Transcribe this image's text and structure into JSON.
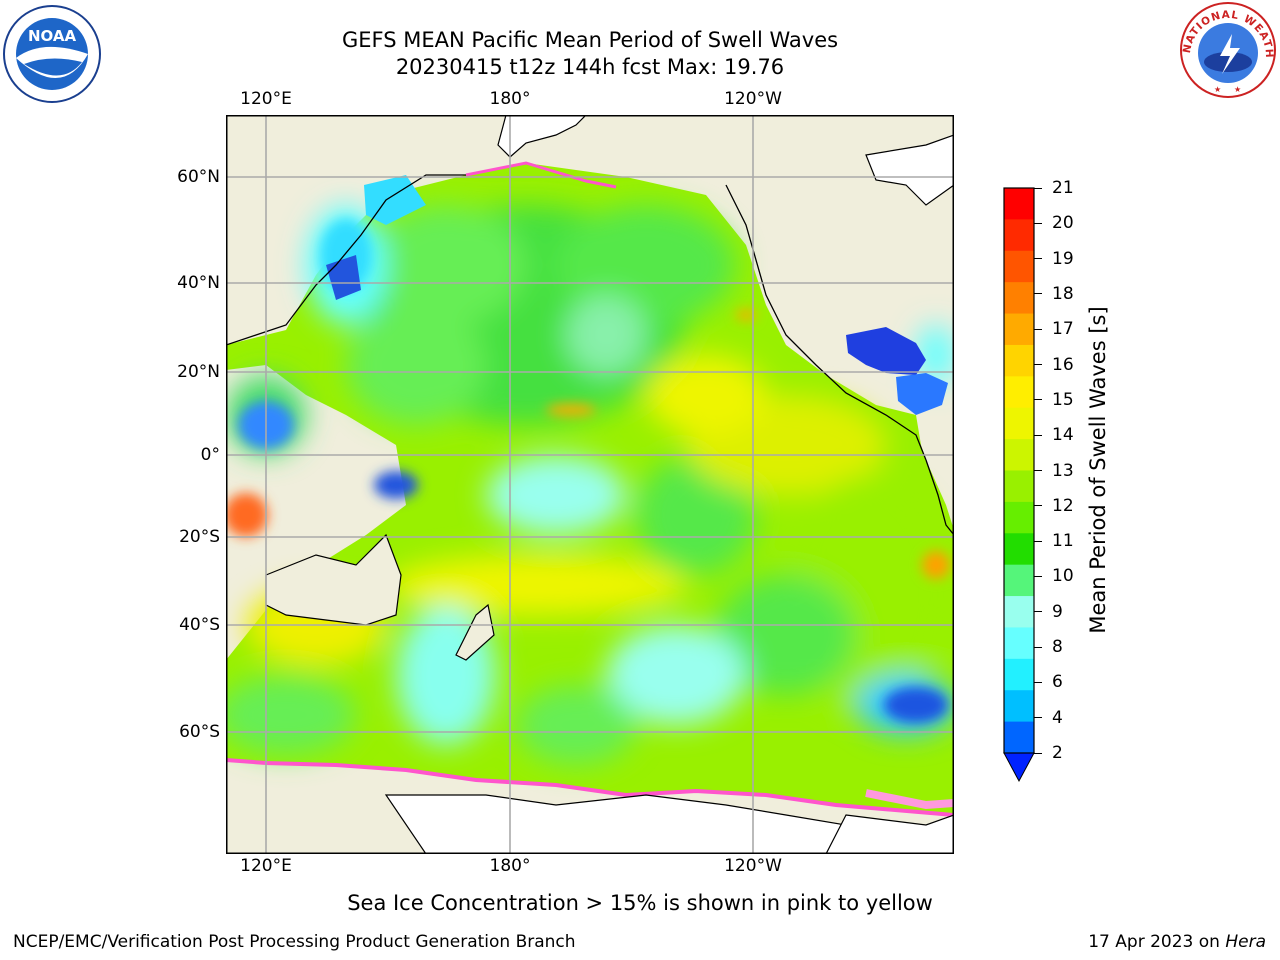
{
  "title": {
    "line1": "GEFS MEAN Pacific Mean Period of Swell Waves",
    "line2": "20230415 t12z 144h fcst   Max: 19.76"
  },
  "logos": {
    "noaa": {
      "icon": "noaa-logo",
      "text": "NOAA"
    },
    "nws": {
      "icon": "nws-logo",
      "text": "NATIONAL WEATHER SERVICE"
    }
  },
  "map": {
    "lon_labels": [
      "120°E",
      "180°",
      "120°W"
    ],
    "lat_labels": [
      "60°N",
      "40°N",
      "20°N",
      "0°",
      "20°S",
      "40°S",
      "60°S"
    ],
    "land_color": "#f0eedc",
    "ice_color": "#ff55cc"
  },
  "colorbar": {
    "title": "Mean Period of Swell Waves [s]",
    "ticks": [
      "21",
      "20",
      "19",
      "18",
      "17",
      "16",
      "15",
      "14",
      "13",
      "12",
      "11",
      "10",
      "9",
      "8",
      "6",
      "4",
      "2"
    ],
    "colors": [
      "#ff0000",
      "#ff2a00",
      "#ff5500",
      "#ff8000",
      "#ffaa00",
      "#ffd400",
      "#ffee00",
      "#eef500",
      "#ccf500",
      "#99f000",
      "#66ee00",
      "#22dd00",
      "#55f57a",
      "#99ffee",
      "#66ffff",
      "#22f0ff",
      "#00bfff",
      "#0066ff"
    ]
  },
  "footnote": "Sea Ice Concentration > 15% is shown in pink to yellow",
  "credit": "NCEP/EMC/Verification Post Processing Product Generation Branch",
  "date": {
    "prefix": "17 Apr 2023 on ",
    "machine": "Hera"
  }
}
